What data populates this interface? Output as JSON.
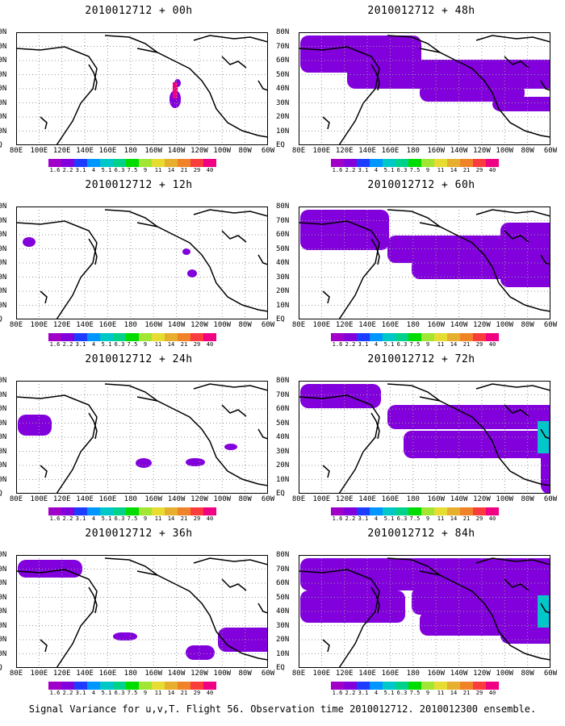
{
  "panels": [
    {
      "title": "2010012712 + 00h"
    },
    {
      "title": "2010012712 + 12h"
    },
    {
      "title": "2010012712 + 24h"
    },
    {
      "title": "2010012712 + 36h"
    },
    {
      "title": "2010012712 + 48h"
    },
    {
      "title": "2010012712 + 60h"
    },
    {
      "title": "2010012712 + 72h"
    },
    {
      "title": "2010012712 + 84h"
    }
  ],
  "axes": {
    "lat_labels": [
      "80N",
      "70N",
      "60N",
      "50N",
      "40N",
      "30N",
      "20N",
      "10N",
      "EQ"
    ],
    "lon_labels": [
      "80E",
      "100E",
      "120E",
      "140E",
      "160E",
      "180",
      "160W",
      "140W",
      "120W",
      "100W",
      "80W",
      "60W"
    ]
  },
  "colorbar": {
    "labels": [
      "1.6",
      "2.2",
      "3.1",
      "4",
      "5.1",
      "6.3",
      "7.5",
      "9",
      "11",
      "14",
      "21",
      "29",
      "40"
    ],
    "colors": [
      "#a000c8",
      "#8200dc",
      "#1e3cff",
      "#0096ff",
      "#00c8c8",
      "#00d28c",
      "#00dc00",
      "#a0e632",
      "#e6dc32",
      "#e6af2d",
      "#f08228",
      "#fa3c3c",
      "#f00082"
    ]
  },
  "footer": "Signal Variance for u,v,T. Flight 56. Observation time 2010012712. 2010012300 ensemble."
}
